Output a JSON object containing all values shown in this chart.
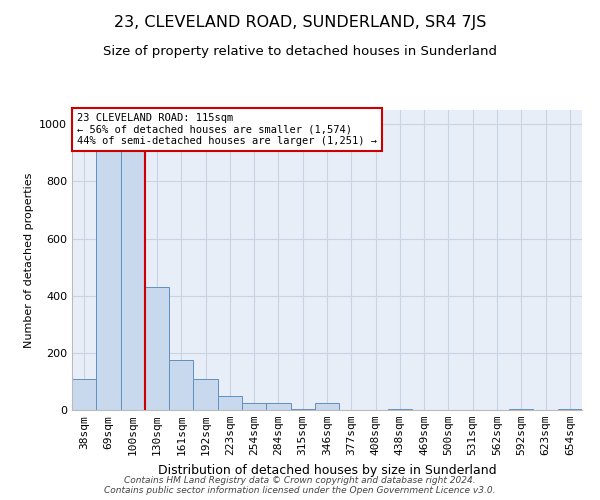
{
  "title": "23, CLEVELAND ROAD, SUNDERLAND, SR4 7JS",
  "subtitle": "Size of property relative to detached houses in Sunderland",
  "xlabel": "Distribution of detached houses by size in Sunderland",
  "ylabel": "Number of detached properties",
  "categories": [
    "38sqm",
    "69sqm",
    "100sqm",
    "130sqm",
    "161sqm",
    "192sqm",
    "223sqm",
    "254sqm",
    "284sqm",
    "315sqm",
    "346sqm",
    "377sqm",
    "408sqm",
    "438sqm",
    "469sqm",
    "500sqm",
    "531sqm",
    "562sqm",
    "592sqm",
    "623sqm",
    "654sqm"
  ],
  "values": [
    110,
    960,
    960,
    430,
    175,
    110,
    50,
    25,
    25,
    5,
    25,
    0,
    0,
    5,
    0,
    0,
    0,
    0,
    5,
    0,
    5
  ],
  "bar_color": "#c8d8ed",
  "bar_edge_color": "#6090c0",
  "grid_color": "#c8d4e4",
  "background_color": "#e8eef8",
  "annotation_text_line1": "23 CLEVELAND ROAD: 115sqm",
  "annotation_text_line2": "← 56% of detached houses are smaller (1,574)",
  "annotation_text_line3": "44% of semi-detached houses are larger (1,251) →",
  "footer_line1": "Contains HM Land Registry data © Crown copyright and database right 2024.",
  "footer_line2": "Contains public sector information licensed under the Open Government Licence v3.0.",
  "property_line_x": 2.5,
  "ylim": [
    0,
    1050
  ],
  "yticks": [
    0,
    200,
    400,
    600,
    800,
    1000
  ],
  "title_fontsize": 11.5,
  "subtitle_fontsize": 9.5,
  "xlabel_fontsize": 9,
  "ylabel_fontsize": 8,
  "tick_fontsize": 8,
  "annotation_fontsize": 7.5,
  "footer_fontsize": 6.5
}
